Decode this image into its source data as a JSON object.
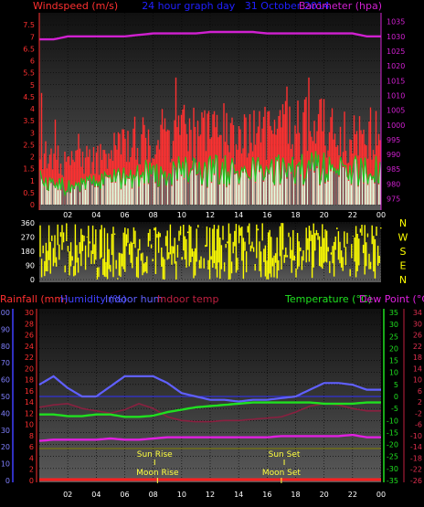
{
  "colors": {
    "windspeed": "#ff3030",
    "barometer": "#d020d0",
    "title": "#2020ff",
    "direction": "#ffff00",
    "rainfall": "#ff3030",
    "humidity": "#4040ff",
    "indoor_hum": "#6060ff",
    "indoor_temp": "#c02040",
    "temperature": "#20e020",
    "dew_point": "#e020e0",
    "sun": "#ffff40",
    "moon": "#ffff40",
    "gust": "#e0ffe0"
  },
  "chart_data": [
    {
      "type": "bar",
      "title": "24 hour graph day   31 October 2014",
      "left_label": "Windspeed (m/s)",
      "right_label": "Barometer (hpa)",
      "x_ticks": [
        "02",
        "04",
        "06",
        "08",
        "10",
        "12",
        "14",
        "16",
        "18",
        "20",
        "22",
        "00"
      ],
      "left_ticks": [
        "0",
        "0.5",
        "1",
        "1.5",
        "2",
        "2.5",
        "3",
        "3.5",
        "4",
        "4.5",
        "5",
        "5.5",
        "6",
        "6.5",
        "7",
        "7.5"
      ],
      "right_ticks": [
        "975",
        "980",
        "985",
        "990",
        "995",
        "1000",
        "1005",
        "1010",
        "1015",
        "1020",
        "1025",
        "1030",
        "1035"
      ],
      "ylim_left": [
        0,
        8
      ],
      "ylim_right": [
        973,
        1038
      ],
      "series": [
        {
          "name": "Windspeed (m/s)",
          "summary": "gust bars mostly 1.5–4 m/s, peaks near 5",
          "values_hourly": [
            2.2,
            2.0,
            1.6,
            1.8,
            2.1,
            2.2,
            2.6,
            2.8,
            3.0,
            3.0,
            3.1,
            3.0,
            3.1,
            3.2,
            2.9,
            3.2,
            3.0,
            3.2,
            3.3,
            3.4,
            3.6,
            3.0,
            3.2,
            3.4
          ]
        },
        {
          "name": "Barometer (hpa)",
          "values_hourly": [
            1029,
            1029,
            1030,
            1030,
            1030,
            1030,
            1030,
            1030.5,
            1031,
            1031,
            1031,
            1031,
            1031.5,
            1031.5,
            1031.5,
            1031.5,
            1031,
            1031,
            1031,
            1031,
            1031,
            1031,
            1031,
            1030
          ]
        }
      ]
    },
    {
      "type": "bar",
      "x_ticks": [
        "02",
        "04",
        "06",
        "08",
        "10",
        "12",
        "14",
        "16",
        "18",
        "20",
        "22",
        "00"
      ],
      "left_ticks": [
        "0",
        "90",
        "180",
        "270",
        "360"
      ],
      "right_labels": [
        "N",
        "W",
        "S",
        "E",
        "N"
      ],
      "ylim": [
        0,
        360
      ],
      "series": [
        {
          "name": "Wind direction",
          "summary": "highly variable, spanning 0–360 all day"
        }
      ]
    },
    {
      "type": "line",
      "header_labels": {
        "rainfall": "Rainfall (mm)",
        "humidity": "Humidity (%)",
        "indoor_hum": "Indoor hum",
        "indoor_temp": "Indoor temp",
        "temperature": "Temperature (°C)",
        "dew_point": "Dew Point (°C)"
      },
      "x_ticks": [
        "02",
        "04",
        "06",
        "08",
        "10",
        "12",
        "14",
        "16",
        "18",
        "20",
        "22",
        "00"
      ],
      "humidity_ticks": [
        "0",
        "10",
        "20",
        "30",
        "40",
        "50",
        "60",
        "70",
        "80",
        "90",
        "100"
      ],
      "rain_ticks": [
        "0",
        "2",
        "4",
        "6",
        "8",
        "10",
        "12",
        "14",
        "16",
        "18",
        "20",
        "22",
        "24",
        "26",
        "28",
        "30"
      ],
      "temp_ticks": [
        "-35",
        "-30",
        "-25",
        "-20",
        "-15",
        "-10",
        "-5",
        "0",
        "5",
        "10",
        "15",
        "20",
        "25",
        "30",
        "35"
      ],
      "indoor_ticks": [
        "-26",
        "-22",
        "-18",
        "-14",
        "-10",
        "-6",
        "-2",
        "2",
        "6",
        "10",
        "14",
        "18",
        "22",
        "26",
        "30",
        "34"
      ],
      "ylim_humidity": [
        0,
        100
      ],
      "ylim_temp": [
        -35,
        35
      ],
      "series": [
        {
          "name": "Humidity (%)",
          "values_hourly": [
            57,
            62,
            55,
            50,
            50,
            56,
            62,
            62,
            62,
            58,
            52,
            50,
            48,
            48,
            47,
            48,
            48,
            49,
            50,
            54,
            58,
            58,
            57,
            54
          ]
        },
        {
          "name": "Temperature (°C)",
          "values_hourly": [
            -7.5,
            -7.5,
            -8.2,
            -8.2,
            -7.5,
            -7.5,
            -8.5,
            -8.5,
            -8.0,
            -6.5,
            -5.5,
            -4.5,
            -4.0,
            -3.5,
            -3.0,
            -2.5,
            -2.5,
            -2.5,
            -2.5,
            -2.5,
            -3.0,
            -3.0,
            -3.0,
            -2.5
          ]
        },
        {
          "name": "Dew Point (°C)",
          "values_hourly": [
            -18.5,
            -18.0,
            -18.0,
            -18.0,
            -18.0,
            -17.5,
            -18.0,
            -18.0,
            -17.5,
            -17.0,
            -17.0,
            -17.0,
            -17.0,
            -17.0,
            -17.0,
            -17.0,
            -17.0,
            -16.5,
            -16.5,
            -16.5,
            -16.5,
            -16.5,
            -16.0,
            -17.0
          ]
        },
        {
          "name": "Indoor temp",
          "values_hourly": [
            -4.5,
            -3.5,
            -3.0,
            -5.0,
            -6.0,
            -7.0,
            -5.5,
            -3.0,
            -5.0,
            -8.5,
            -10.0,
            -10.5,
            -10.5,
            -10.0,
            -10.0,
            -9.5,
            -9.0,
            -8.5,
            -6.5,
            -4.0,
            -3.0,
            -3.5,
            -5.0,
            -6.0
          ]
        },
        {
          "name": "Rainfall (mm)",
          "values_hourly": [
            0,
            0,
            0,
            0,
            0,
            0,
            0,
            0,
            0,
            0,
            0,
            0,
            0,
            0,
            0,
            0,
            0,
            0,
            0,
            0,
            0,
            0,
            0,
            0
          ]
        }
      ],
      "events": [
        {
          "label": "Sun Rise",
          "hour": 8.1
        },
        {
          "label": "Sun Set",
          "hour": 17.2
        },
        {
          "label": "Moon Rise",
          "hour": 8.3
        },
        {
          "label": "Moon Set",
          "hour": 17.0
        }
      ]
    }
  ]
}
